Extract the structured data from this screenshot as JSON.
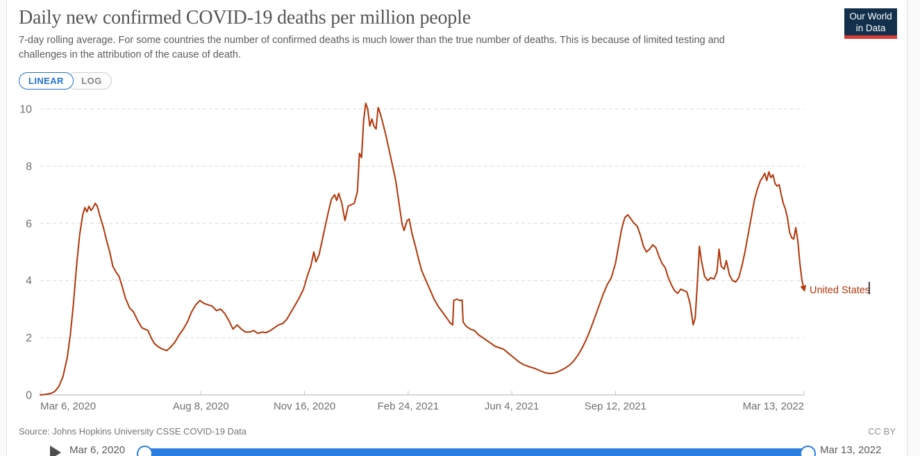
{
  "header": {
    "title": "Daily new confirmed COVID-19 deaths per million people",
    "subtitle_line1": "7-day rolling average. For some countries the number of confirmed deaths is much lower than the true number of deaths. This is because of limited testing and",
    "subtitle_line2": "challenges in the attribution of the cause of death.",
    "logo": {
      "line1": "Our World",
      "line2": "in Data"
    }
  },
  "controls": {
    "scale_tabs": [
      {
        "label": "LINEAR",
        "active": true
      },
      {
        "label": "LOG",
        "active": false
      }
    ]
  },
  "chart_data": {
    "type": "line",
    "title": "Daily new confirmed COVID-19 deaths per million people",
    "xlabel": "",
    "ylabel": "",
    "grid": "horizontal-dashed",
    "legend_position": "end-of-line-label",
    "y_ticks": [
      0,
      2,
      4,
      6,
      8,
      10
    ],
    "ylim": [
      0,
      10.3
    ],
    "x_range": [
      "2020-03-06",
      "2022-03-13"
    ],
    "x_ticks": [
      "Mar 6, 2020",
      "Aug 8, 2020",
      "Nov 16, 2020",
      "Feb 24, 2021",
      "Jun 4, 2021",
      "Sep 12, 2021",
      "Mar 13, 2022"
    ],
    "x_tick_dates": [
      "2020-03-06",
      "2020-08-08",
      "2020-11-16",
      "2021-02-24",
      "2021-06-04",
      "2021-09-12",
      "2022-03-13"
    ],
    "series": [
      {
        "name": "United States",
        "color": "#b13507",
        "points": [
          [
            "2020-03-06",
            0.0
          ],
          [
            "2020-03-11",
            0.02
          ],
          [
            "2020-03-16",
            0.05
          ],
          [
            "2020-03-20",
            0.12
          ],
          [
            "2020-03-24",
            0.3
          ],
          [
            "2020-03-28",
            0.65
          ],
          [
            "2020-04-01",
            1.3
          ],
          [
            "2020-04-04",
            2.1
          ],
          [
            "2020-04-07",
            3.2
          ],
          [
            "2020-04-10",
            4.5
          ],
          [
            "2020-04-13",
            5.6
          ],
          [
            "2020-04-16",
            6.3
          ],
          [
            "2020-04-18",
            6.55
          ],
          [
            "2020-04-20",
            6.4
          ],
          [
            "2020-04-22",
            6.6
          ],
          [
            "2020-04-24",
            6.45
          ],
          [
            "2020-04-26",
            6.55
          ],
          [
            "2020-04-28",
            6.7
          ],
          [
            "2020-04-30",
            6.6
          ],
          [
            "2020-05-03",
            6.2
          ],
          [
            "2020-05-06",
            5.85
          ],
          [
            "2020-05-09",
            5.4
          ],
          [
            "2020-05-12",
            5.0
          ],
          [
            "2020-05-15",
            4.5
          ],
          [
            "2020-05-18",
            4.3
          ],
          [
            "2020-05-21",
            4.15
          ],
          [
            "2020-05-24",
            3.8
          ],
          [
            "2020-05-27",
            3.4
          ],
          [
            "2020-05-31",
            3.05
          ],
          [
            "2020-06-04",
            2.9
          ],
          [
            "2020-06-08",
            2.6
          ],
          [
            "2020-06-12",
            2.35
          ],
          [
            "2020-06-15",
            2.3
          ],
          [
            "2020-06-18",
            2.25
          ],
          [
            "2020-06-21",
            2.0
          ],
          [
            "2020-06-24",
            1.8
          ],
          [
            "2020-06-28",
            1.68
          ],
          [
            "2020-07-02",
            1.6
          ],
          [
            "2020-07-06",
            1.55
          ],
          [
            "2020-07-10",
            1.68
          ],
          [
            "2020-07-14",
            1.85
          ],
          [
            "2020-07-18",
            2.1
          ],
          [
            "2020-07-22",
            2.3
          ],
          [
            "2020-07-26",
            2.55
          ],
          [
            "2020-07-30",
            2.9
          ],
          [
            "2020-08-03",
            3.15
          ],
          [
            "2020-08-07",
            3.3
          ],
          [
            "2020-08-11",
            3.2
          ],
          [
            "2020-08-15",
            3.15
          ],
          [
            "2020-08-19",
            3.1
          ],
          [
            "2020-08-23",
            2.95
          ],
          [
            "2020-08-27",
            3.0
          ],
          [
            "2020-08-31",
            2.85
          ],
          [
            "2020-09-04",
            2.6
          ],
          [
            "2020-09-08",
            2.3
          ],
          [
            "2020-09-12",
            2.45
          ],
          [
            "2020-09-16",
            2.3
          ],
          [
            "2020-09-20",
            2.2
          ],
          [
            "2020-09-24",
            2.2
          ],
          [
            "2020-09-28",
            2.25
          ],
          [
            "2020-10-02",
            2.15
          ],
          [
            "2020-10-06",
            2.2
          ],
          [
            "2020-10-10",
            2.18
          ],
          [
            "2020-10-14",
            2.25
          ],
          [
            "2020-10-18",
            2.35
          ],
          [
            "2020-10-22",
            2.45
          ],
          [
            "2020-10-26",
            2.5
          ],
          [
            "2020-10-30",
            2.65
          ],
          [
            "2020-11-03",
            2.9
          ],
          [
            "2020-11-07",
            3.15
          ],
          [
            "2020-11-11",
            3.4
          ],
          [
            "2020-11-15",
            3.7
          ],
          [
            "2020-11-19",
            4.2
          ],
          [
            "2020-11-22",
            4.5
          ],
          [
            "2020-11-25",
            5.0
          ],
          [
            "2020-11-27",
            4.65
          ],
          [
            "2020-11-30",
            4.9
          ],
          [
            "2020-12-03",
            5.4
          ],
          [
            "2020-12-06",
            5.9
          ],
          [
            "2020-12-09",
            6.4
          ],
          [
            "2020-12-12",
            6.85
          ],
          [
            "2020-12-15",
            7.0
          ],
          [
            "2020-12-17",
            6.8
          ],
          [
            "2020-12-19",
            7.05
          ],
          [
            "2020-12-22",
            6.7
          ],
          [
            "2020-12-25",
            6.1
          ],
          [
            "2020-12-28",
            6.6
          ],
          [
            "2020-12-31",
            6.65
          ],
          [
            "2021-01-03",
            6.7
          ],
          [
            "2021-01-06",
            7.1
          ],
          [
            "2021-01-08",
            8.45
          ],
          [
            "2021-01-10",
            8.3
          ],
          [
            "2021-01-12",
            9.6
          ],
          [
            "2021-01-14",
            10.2
          ],
          [
            "2021-01-16",
            10.0
          ],
          [
            "2021-01-18",
            9.4
          ],
          [
            "2021-01-20",
            9.65
          ],
          [
            "2021-01-22",
            9.4
          ],
          [
            "2021-01-24",
            9.3
          ],
          [
            "2021-01-26",
            10.05
          ],
          [
            "2021-01-28",
            9.85
          ],
          [
            "2021-01-31",
            9.45
          ],
          [
            "2021-02-03",
            9.0
          ],
          [
            "2021-02-06",
            8.5
          ],
          [
            "2021-02-09",
            8.0
          ],
          [
            "2021-02-12",
            7.5
          ],
          [
            "2021-02-15",
            6.75
          ],
          [
            "2021-02-18",
            6.0
          ],
          [
            "2021-02-20",
            5.75
          ],
          [
            "2021-02-23",
            6.1
          ],
          [
            "2021-02-25",
            6.15
          ],
          [
            "2021-02-28",
            5.6
          ],
          [
            "2021-03-03",
            5.2
          ],
          [
            "2021-03-06",
            4.75
          ],
          [
            "2021-03-09",
            4.35
          ],
          [
            "2021-03-12",
            4.1
          ],
          [
            "2021-03-15",
            3.85
          ],
          [
            "2021-03-18",
            3.6
          ],
          [
            "2021-03-21",
            3.35
          ],
          [
            "2021-03-25",
            3.1
          ],
          [
            "2021-03-29",
            2.9
          ],
          [
            "2021-04-02",
            2.7
          ],
          [
            "2021-04-06",
            2.5
          ],
          [
            "2021-04-08",
            2.45
          ],
          [
            "2021-04-09",
            3.3
          ],
          [
            "2021-04-12",
            3.35
          ],
          [
            "2021-04-15",
            3.3
          ],
          [
            "2021-04-17",
            3.32
          ],
          [
            "2021-04-18",
            2.55
          ],
          [
            "2021-04-21",
            2.4
          ],
          [
            "2021-04-25",
            2.3
          ],
          [
            "2021-04-29",
            2.25
          ],
          [
            "2021-05-03",
            2.1
          ],
          [
            "2021-05-07",
            2.0
          ],
          [
            "2021-05-11",
            1.9
          ],
          [
            "2021-05-15",
            1.8
          ],
          [
            "2021-05-19",
            1.7
          ],
          [
            "2021-05-23",
            1.65
          ],
          [
            "2021-05-27",
            1.6
          ],
          [
            "2021-06-01",
            1.45
          ],
          [
            "2021-06-06",
            1.3
          ],
          [
            "2021-06-11",
            1.15
          ],
          [
            "2021-06-16",
            1.05
          ],
          [
            "2021-06-21",
            0.98
          ],
          [
            "2021-06-26",
            0.93
          ],
          [
            "2021-07-01",
            0.85
          ],
          [
            "2021-07-06",
            0.78
          ],
          [
            "2021-07-10",
            0.75
          ],
          [
            "2021-07-14",
            0.76
          ],
          [
            "2021-07-18",
            0.8
          ],
          [
            "2021-07-22",
            0.87
          ],
          [
            "2021-07-26",
            0.95
          ],
          [
            "2021-07-30",
            1.05
          ],
          [
            "2021-08-03",
            1.2
          ],
          [
            "2021-08-07",
            1.4
          ],
          [
            "2021-08-11",
            1.65
          ],
          [
            "2021-08-15",
            1.95
          ],
          [
            "2021-08-19",
            2.3
          ],
          [
            "2021-08-23",
            2.7
          ],
          [
            "2021-08-27",
            3.1
          ],
          [
            "2021-08-31",
            3.5
          ],
          [
            "2021-09-04",
            3.85
          ],
          [
            "2021-09-08",
            4.1
          ],
          [
            "2021-09-12",
            4.6
          ],
          [
            "2021-09-15",
            5.2
          ],
          [
            "2021-09-18",
            5.8
          ],
          [
            "2021-09-21",
            6.2
          ],
          [
            "2021-09-24",
            6.3
          ],
          [
            "2021-09-27",
            6.15
          ],
          [
            "2021-09-30",
            6.0
          ],
          [
            "2021-10-03",
            5.9
          ],
          [
            "2021-10-06",
            5.6
          ],
          [
            "2021-10-09",
            5.2
          ],
          [
            "2021-10-12",
            5.0
          ],
          [
            "2021-10-15",
            5.1
          ],
          [
            "2021-10-18",
            5.25
          ],
          [
            "2021-10-21",
            5.15
          ],
          [
            "2021-10-24",
            4.85
          ],
          [
            "2021-10-27",
            4.6
          ],
          [
            "2021-10-30",
            4.45
          ],
          [
            "2021-11-02",
            4.1
          ],
          [
            "2021-11-05",
            3.85
          ],
          [
            "2021-11-08",
            3.65
          ],
          [
            "2021-11-11",
            3.55
          ],
          [
            "2021-11-14",
            3.7
          ],
          [
            "2021-11-17",
            3.65
          ],
          [
            "2021-11-20",
            3.6
          ],
          [
            "2021-11-23",
            3.2
          ],
          [
            "2021-11-26",
            2.45
          ],
          [
            "2021-11-28",
            2.7
          ],
          [
            "2021-11-30",
            3.9
          ],
          [
            "2021-12-02",
            5.2
          ],
          [
            "2021-12-04",
            4.7
          ],
          [
            "2021-12-07",
            4.15
          ],
          [
            "2021-12-10",
            4.0
          ],
          [
            "2021-12-13",
            4.1
          ],
          [
            "2021-12-16",
            4.05
          ],
          [
            "2021-12-19",
            4.3
          ],
          [
            "2021-12-21",
            5.1
          ],
          [
            "2021-12-23",
            4.5
          ],
          [
            "2021-12-26",
            4.4
          ],
          [
            "2021-12-28",
            4.7
          ],
          [
            "2021-12-31",
            4.2
          ],
          [
            "2022-01-03",
            4.0
          ],
          [
            "2022-01-06",
            3.95
          ],
          [
            "2022-01-09",
            4.1
          ],
          [
            "2022-01-12",
            4.5
          ],
          [
            "2022-01-15",
            5.0
          ],
          [
            "2022-01-18",
            5.6
          ],
          [
            "2022-01-21",
            6.2
          ],
          [
            "2022-01-24",
            6.8
          ],
          [
            "2022-01-27",
            7.2
          ],
          [
            "2022-01-30",
            7.5
          ],
          [
            "2022-02-01",
            7.6
          ],
          [
            "2022-02-03",
            7.75
          ],
          [
            "2022-02-05",
            7.5
          ],
          [
            "2022-02-07",
            7.8
          ],
          [
            "2022-02-09",
            7.6
          ],
          [
            "2022-02-11",
            7.7
          ],
          [
            "2022-02-13",
            7.4
          ],
          [
            "2022-02-15",
            7.3
          ],
          [
            "2022-02-17",
            7.35
          ],
          [
            "2022-02-19",
            7.0
          ],
          [
            "2022-02-21",
            6.7
          ],
          [
            "2022-02-23",
            6.5
          ],
          [
            "2022-02-25",
            6.2
          ],
          [
            "2022-02-27",
            5.7
          ],
          [
            "2022-03-01",
            5.5
          ],
          [
            "2022-03-03",
            5.45
          ],
          [
            "2022-03-05",
            5.85
          ],
          [
            "2022-03-07",
            5.4
          ],
          [
            "2022-03-09",
            4.6
          ],
          [
            "2022-03-11",
            4.0
          ],
          [
            "2022-03-13",
            3.7
          ]
        ]
      }
    ]
  },
  "footer": {
    "source": "Source: Johns Hopkins University CSSE COVID-19 Data",
    "license": "CC BY"
  },
  "timeline": {
    "start_label": "Mar 6, 2020",
    "end_label": "Mar 13, 2022",
    "play_icon": "play-icon"
  },
  "colors": {
    "line": "#b13507",
    "active_tab": "#2271d1",
    "slider": "#2a7de1",
    "logo_bg": "#12304b",
    "logo_bar": "#dc3a34",
    "grid": "#d9d9d9",
    "axis": "#b0b0b0",
    "tick_text": "#6f6f6f"
  }
}
